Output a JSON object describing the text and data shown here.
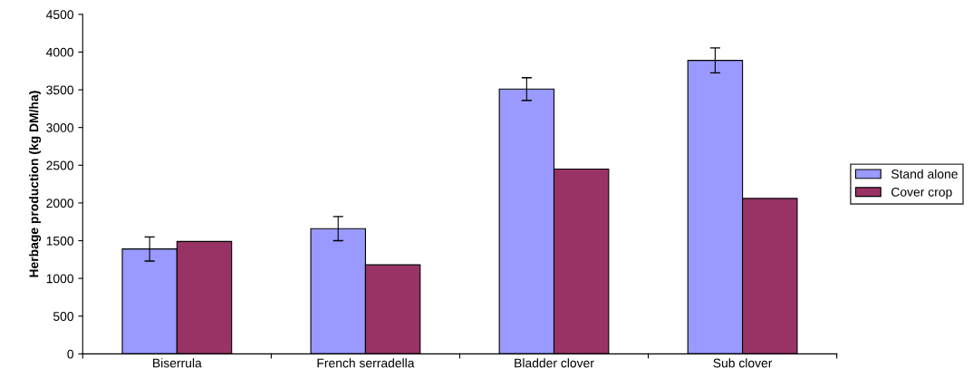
{
  "chart_data": {
    "type": "bar",
    "ylabel": "Herbage production (kg DM/ha)",
    "categories": [
      "Biserrula",
      "French serradella",
      "Bladder clover",
      "Sub clover"
    ],
    "series": [
      {
        "name": "Stand alone",
        "color": "#9999ff",
        "values": [
          1390,
          1660,
          3510,
          3890
        ],
        "errors": [
          160,
          160,
          150,
          165
        ]
      },
      {
        "name": "Cover crop",
        "color": "#993366",
        "values": [
          1490,
          1180,
          2450,
          2060
        ]
      }
    ],
    "ylim": [
      0,
      4500
    ],
    "yticks": [
      0,
      500,
      1000,
      1500,
      2000,
      2500,
      3000,
      3500,
      4000,
      4500
    ],
    "grid": false,
    "legend": "right"
  }
}
